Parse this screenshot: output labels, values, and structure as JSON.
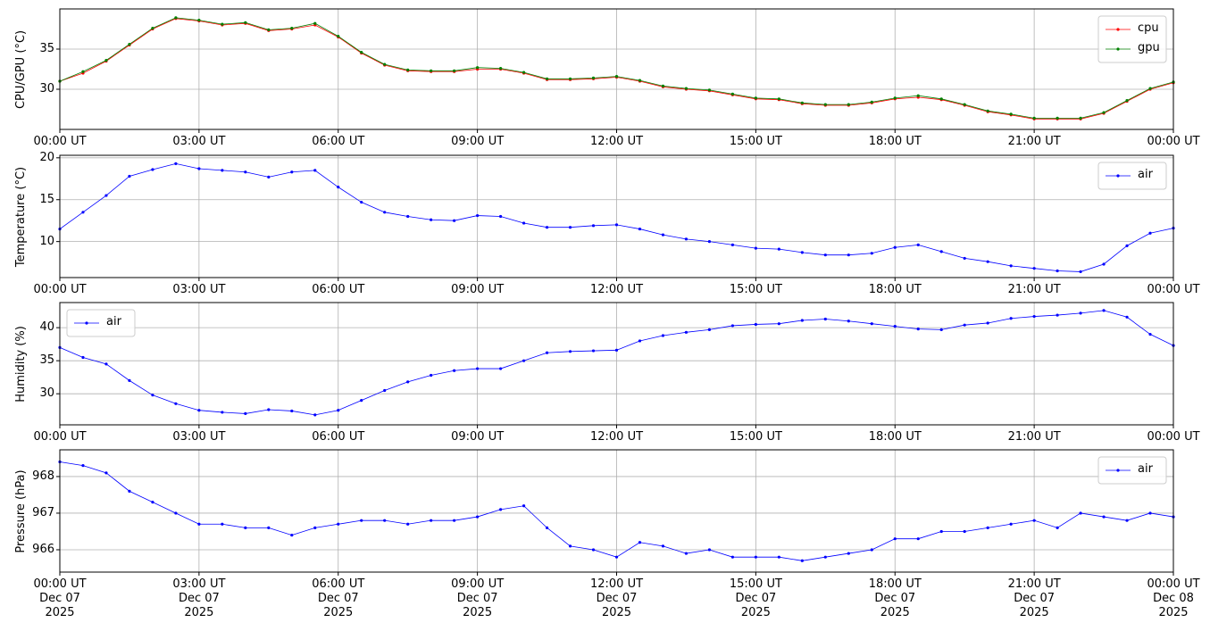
{
  "chart_data": [
    {
      "type": "line",
      "ylabel": "CPU/GPU (°C)",
      "legend": "upper right",
      "x": [
        0,
        0.5,
        1,
        1.5,
        2,
        2.5,
        3,
        3.5,
        4,
        4.5,
        5,
        5.5,
        6,
        6.5,
        7,
        7.5,
        8,
        8.5,
        9,
        9.5,
        10,
        10.5,
        11,
        11.5,
        12,
        12.5,
        13,
        13.5,
        14,
        14.5,
        15,
        15.5,
        16,
        16.5,
        17,
        17.5,
        18,
        18.5,
        19,
        19.5,
        20,
        20.5,
        21,
        21.5,
        22,
        22.5,
        23,
        23.5,
        24
      ],
      "series": [
        {
          "name": "cpu",
          "color": "#ff0000",
          "values": [
            31,
            32,
            33.5,
            35.5,
            37.5,
            38.8,
            38.5,
            38,
            38.2,
            37.3,
            37.5,
            38,
            36.5,
            34.5,
            33,
            32.3,
            32.2,
            32.2,
            32.5,
            32.5,
            32,
            31.2,
            31.2,
            31.3,
            31.5,
            31,
            30.3,
            30,
            29.8,
            29.3,
            28.8,
            28.7,
            28.2,
            28,
            28,
            28.3,
            28.8,
            29,
            28.7,
            28,
            27.2,
            26.8,
            26.3,
            26.3,
            26.3,
            27,
            28.5,
            30,
            30.8
          ]
        },
        {
          "name": "gpu",
          "color": "#008000",
          "values": [
            31,
            32.2,
            33.6,
            35.6,
            37.6,
            38.9,
            38.6,
            38.1,
            38.3,
            37.4,
            37.6,
            38.2,
            36.6,
            34.6,
            33.1,
            32.4,
            32.3,
            32.3,
            32.7,
            32.6,
            32.1,
            31.3,
            31.3,
            31.4,
            31.6,
            31.1,
            30.4,
            30.1,
            29.9,
            29.4,
            28.9,
            28.8,
            28.3,
            28.1,
            28.1,
            28.4,
            28.9,
            29.2,
            28.8,
            28.1,
            27.3,
            26.9,
            26.4,
            26.4,
            26.4,
            27.1,
            28.6,
            30.1,
            30.9
          ]
        }
      ],
      "xlim": [
        0,
        24
      ],
      "xticks": [
        {
          "value": 0,
          "label": "00:00 UT"
        },
        {
          "value": 3,
          "label": "03:00 UT"
        },
        {
          "value": 6,
          "label": "06:00 UT"
        },
        {
          "value": 9,
          "label": "09:00 UT"
        },
        {
          "value": 12,
          "label": "12:00 UT"
        },
        {
          "value": 15,
          "label": "15:00 UT"
        },
        {
          "value": 18,
          "label": "18:00 UT"
        },
        {
          "value": 21,
          "label": "21:00 UT"
        },
        {
          "value": 24,
          "label": "00:00 UT"
        }
      ],
      "ylim": [
        25,
        40
      ],
      "yticks": [
        30,
        35
      ],
      "grid": true
    },
    {
      "type": "line",
      "ylabel": "Temperature (°C)",
      "legend": "upper right",
      "x": [
        0,
        0.5,
        1,
        1.5,
        2,
        2.5,
        3,
        3.5,
        4,
        4.5,
        5,
        5.5,
        6,
        6.5,
        7,
        7.5,
        8,
        8.5,
        9,
        9.5,
        10,
        10.5,
        11,
        11.5,
        12,
        12.5,
        13,
        13.5,
        14,
        14.5,
        15,
        15.5,
        16,
        16.5,
        17,
        17.5,
        18,
        18.5,
        19,
        19.5,
        20,
        20.5,
        21,
        21.5,
        22,
        22.5,
        23,
        23.5,
        24
      ],
      "series": [
        {
          "name": "air",
          "color": "#0000ff",
          "values": [
            11.5,
            13.5,
            15.5,
            17.8,
            18.6,
            19.3,
            18.7,
            18.5,
            18.3,
            17.7,
            18.3,
            18.5,
            16.5,
            14.7,
            13.5,
            13,
            12.6,
            12.5,
            13.1,
            13,
            12.2,
            11.7,
            11.7,
            11.9,
            12,
            11.5,
            10.8,
            10.3,
            10,
            9.6,
            9.2,
            9.1,
            8.7,
            8.4,
            8.4,
            8.6,
            9.3,
            9.6,
            8.8,
            8,
            7.6,
            7.1,
            6.8,
            6.5,
            6.4,
            7.3,
            9.5,
            11,
            11.6
          ]
        }
      ],
      "xlim": [
        0,
        24
      ],
      "xticks": [
        {
          "value": 0,
          "label": "00:00 UT"
        },
        {
          "value": 3,
          "label": "03:00 UT"
        },
        {
          "value": 6,
          "label": "06:00 UT"
        },
        {
          "value": 9,
          "label": "09:00 UT"
        },
        {
          "value": 12,
          "label": "12:00 UT"
        },
        {
          "value": 15,
          "label": "15:00 UT"
        },
        {
          "value": 18,
          "label": "18:00 UT"
        },
        {
          "value": 21,
          "label": "21:00 UT"
        },
        {
          "value": 24,
          "label": "00:00 UT"
        }
      ],
      "ylim": [
        5.7,
        20.3
      ],
      "yticks": [
        10,
        15,
        20
      ],
      "grid": true
    },
    {
      "type": "line",
      "ylabel": "Humidity (%)",
      "legend": "upper left",
      "x": [
        0,
        0.5,
        1,
        1.5,
        2,
        2.5,
        3,
        3.5,
        4,
        4.5,
        5,
        5.5,
        6,
        6.5,
        7,
        7.5,
        8,
        8.5,
        9,
        9.5,
        10,
        10.5,
        11,
        11.5,
        12,
        12.5,
        13,
        13.5,
        14,
        14.5,
        15,
        15.5,
        16,
        16.5,
        17,
        17.5,
        18,
        18.5,
        19,
        19.5,
        20,
        20.5,
        21,
        21.5,
        22,
        22.5,
        23,
        23.5,
        24
      ],
      "series": [
        {
          "name": "air",
          "color": "#0000ff",
          "values": [
            37,
            35.5,
            34.5,
            32,
            29.8,
            28.5,
            27.5,
            27.2,
            27,
            27.6,
            27.4,
            26.8,
            27.5,
            29,
            30.5,
            31.8,
            32.8,
            33.5,
            33.8,
            33.8,
            35,
            36.2,
            36.4,
            36.5,
            36.6,
            38,
            38.8,
            39.3,
            39.7,
            40.3,
            40.5,
            40.6,
            41.1,
            41.3,
            41,
            40.6,
            40.2,
            39.8,
            39.7,
            40.4,
            40.7,
            41.4,
            41.7,
            41.9,
            42.2,
            42.6,
            41.6,
            39,
            37.3
          ]
        }
      ],
      "xlim": [
        0,
        24
      ],
      "xticks": [
        {
          "value": 0,
          "label": "00:00 UT"
        },
        {
          "value": 3,
          "label": "03:00 UT"
        },
        {
          "value": 6,
          "label": "06:00 UT"
        },
        {
          "value": 9,
          "label": "09:00 UT"
        },
        {
          "value": 12,
          "label": "12:00 UT"
        },
        {
          "value": 15,
          "label": "15:00 UT"
        },
        {
          "value": 18,
          "label": "18:00 UT"
        },
        {
          "value": 21,
          "label": "21:00 UT"
        },
        {
          "value": 24,
          "label": "00:00 UT"
        }
      ],
      "ylim": [
        25.3,
        43.8
      ],
      "yticks": [
        30,
        35,
        40
      ],
      "grid": true
    },
    {
      "type": "line",
      "ylabel": "Pressure (hPa)",
      "legend": "upper right",
      "x": [
        0,
        0.5,
        1,
        1.5,
        2,
        2.5,
        3,
        3.5,
        4,
        4.5,
        5,
        5.5,
        6,
        6.5,
        7,
        7.5,
        8,
        8.5,
        9,
        9.5,
        10,
        10.5,
        11,
        11.5,
        12,
        12.5,
        13,
        13.5,
        14,
        14.5,
        15,
        15.5,
        16,
        16.5,
        17,
        17.5,
        18,
        18.5,
        19,
        19.5,
        20,
        20.5,
        21,
        21.5,
        22,
        22.5,
        23,
        23.5,
        24
      ],
      "series": [
        {
          "name": "air",
          "color": "#0000ff",
          "values": [
            968.4,
            968.3,
            968.1,
            967.6,
            967.3,
            967,
            966.7,
            966.7,
            966.6,
            966.6,
            966.4,
            966.6,
            966.7,
            966.8,
            966.8,
            966.7,
            966.8,
            966.8,
            966.9,
            967.1,
            967.2,
            966.6,
            966.1,
            966,
            965.8,
            966.2,
            966.1,
            965.9,
            966,
            965.8,
            965.8,
            965.8,
            965.7,
            965.8,
            965.9,
            966,
            966.3,
            966.3,
            966.5,
            966.5,
            966.6,
            966.7,
            966.8,
            966.6,
            967,
            966.9,
            966.8,
            967,
            966.9
          ]
        }
      ],
      "xlim": [
        0,
        24
      ],
      "xticks": [
        {
          "value": 0,
          "label": "00:00 UT\nDec 07\n2025"
        },
        {
          "value": 3,
          "label": "03:00 UT\nDec 07\n2025"
        },
        {
          "value": 6,
          "label": "06:00 UT\nDec 07\n2025"
        },
        {
          "value": 9,
          "label": "09:00 UT\nDec 07\n2025"
        },
        {
          "value": 12,
          "label": "12:00 UT\nDec 07\n2025"
        },
        {
          "value": 15,
          "label": "15:00 UT\nDec 07\n2025"
        },
        {
          "value": 18,
          "label": "18:00 UT\nDec 07\n2025"
        },
        {
          "value": 21,
          "label": "21:00 UT\nDec 07\n2025"
        },
        {
          "value": 24,
          "label": "00:00 UT\nDec 08\n2025"
        }
      ],
      "ylim": [
        965.39,
        968.73
      ],
      "yticks": [
        966,
        967,
        968
      ],
      "grid": true
    }
  ]
}
